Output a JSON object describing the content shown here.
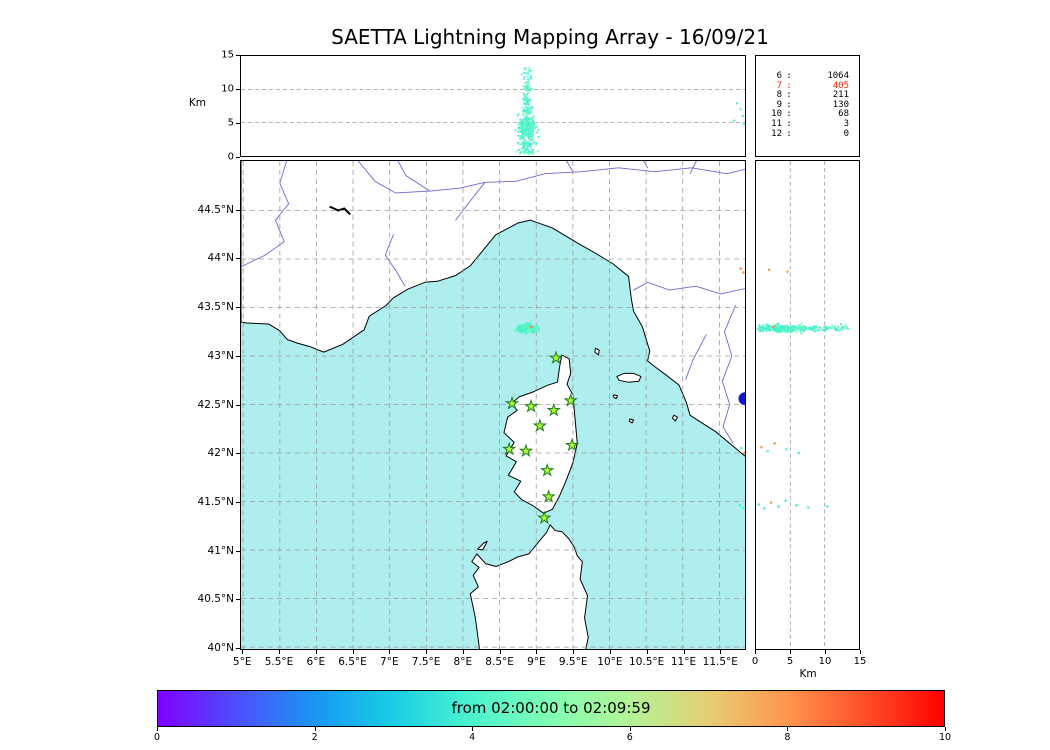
{
  "title": "SAETTA Lightning Mapping Array - 16/09/21",
  "labels": {
    "km": "Km"
  },
  "colors": {
    "sea": "#afeeee",
    "land": "#ffffff",
    "coast": "#000000",
    "river": "#6a68d4",
    "grid": "#9a9a9a",
    "lake": "#000000",
    "station_fill": "#adff2f",
    "station_edge": "#1d7a1d"
  },
  "legend": {
    "rows": [
      {
        "n": "6",
        "count": "1064",
        "color": "#000000"
      },
      {
        "n": "7",
        "count": "405",
        "color": "#e62e04"
      },
      {
        "n": "8",
        "count": "211",
        "color": "#000000"
      },
      {
        "n": "9",
        "count": "130",
        "color": "#000000"
      },
      {
        "n": "10",
        "count": "68",
        "color": "#000000"
      },
      {
        "n": "11",
        "count": "3",
        "color": "#000000"
      },
      {
        "n": "12",
        "count": "0",
        "color": "#000000"
      }
    ]
  },
  "map": {
    "lon_ticks": [
      {
        "v": 5,
        "label": "5°E"
      },
      {
        "v": 5.5,
        "label": "5.5°E"
      },
      {
        "v": 6,
        "label": "6°E"
      },
      {
        "v": 6.5,
        "label": "6.5°E"
      },
      {
        "v": 7,
        "label": "7°E"
      },
      {
        "v": 7.5,
        "label": "7.5°E"
      },
      {
        "v": 8,
        "label": "8°E"
      },
      {
        "v": 8.5,
        "label": "8.5°E"
      },
      {
        "v": 9,
        "label": "9°E"
      },
      {
        "v": 9.5,
        "label": "9.5°E"
      },
      {
        "v": 10,
        "label": "10°E"
      },
      {
        "v": 10.5,
        "label": "10.5°E"
      },
      {
        "v": 11,
        "label": "11°E"
      },
      {
        "v": 11.5,
        "label": "11.5°E"
      }
    ],
    "lat_ticks": [
      {
        "v": 40,
        "label": "40°N"
      },
      {
        "v": 40.5,
        "label": "40.5°N"
      },
      {
        "v": 41,
        "label": "41°N"
      },
      {
        "v": 41.5,
        "label": "41.5°N"
      },
      {
        "v": 42,
        "label": "42°N"
      },
      {
        "v": 42.5,
        "label": "42.5°N"
      },
      {
        "v": 43,
        "label": "43°N"
      },
      {
        "v": 43.5,
        "label": "43.5°N"
      },
      {
        "v": 44,
        "label": "44°N"
      },
      {
        "v": 44.5,
        "label": "44.5°N"
      }
    ]
  },
  "alt_axis": {
    "ticks": [
      {
        "v": 0,
        "label": "0"
      },
      {
        "v": 5,
        "label": "5"
      },
      {
        "v": 10,
        "label": "10"
      },
      {
        "v": 15,
        "label": "15"
      }
    ]
  },
  "colorbar": {
    "label": "from 02:00:00 to 02:09:59",
    "ticks": [
      "0",
      "2",
      "4",
      "6",
      "8",
      "10"
    ],
    "range": [
      0,
      10
    ],
    "stops": [
      "#8000ff",
      "#4d4ffc",
      "#1a96f3",
      "#1acee3",
      "#4df3ce",
      "#80ffb4",
      "#b3f396",
      "#e6ce74",
      "#ff964f",
      "#ff4f28",
      "#ff0000"
    ]
  },
  "stations": [
    [
      9.27,
      42.98
    ],
    [
      8.67,
      42.51
    ],
    [
      8.93,
      42.48
    ],
    [
      9.24,
      42.44
    ],
    [
      9.47,
      42.54
    ],
    [
      9.05,
      42.28
    ],
    [
      8.63,
      42.04
    ],
    [
      8.86,
      42.02
    ],
    [
      9.49,
      42.08
    ],
    [
      9.15,
      41.82
    ],
    [
      9.17,
      41.55
    ],
    [
      9.11,
      41.33
    ]
  ],
  "geo": {
    "land": [
      [
        [
          4.97,
          45.03
        ],
        [
          11.88,
          45.03
        ],
        [
          11.88,
          41.95
        ],
        [
          11.72,
          42.05
        ],
        [
          11.45,
          42.22
        ],
        [
          11.18,
          42.35
        ],
        [
          11.1,
          42.39
        ],
        [
          11.05,
          42.52
        ],
        [
          10.95,
          42.7
        ],
        [
          10.78,
          42.8
        ],
        [
          10.6,
          42.9
        ],
        [
          10.52,
          42.95
        ],
        [
          10.55,
          43.05
        ],
        [
          10.45,
          43.3
        ],
        [
          10.33,
          43.46
        ],
        [
          10.3,
          43.58
        ],
        [
          10.26,
          43.82
        ],
        [
          10.05,
          43.95
        ],
        [
          9.83,
          44.05
        ],
        [
          9.55,
          44.17
        ],
        [
          9.22,
          44.32
        ],
        [
          8.92,
          44.4
        ],
        [
          8.75,
          44.37
        ],
        [
          8.45,
          44.25
        ],
        [
          8.1,
          43.93
        ],
        [
          7.9,
          43.83
        ],
        [
          7.65,
          43.77
        ],
        [
          7.48,
          43.76
        ],
        [
          7.25,
          43.69
        ],
        [
          7.05,
          43.6
        ],
        [
          6.95,
          43.52
        ],
        [
          6.72,
          43.41
        ],
        [
          6.65,
          43.27
        ],
        [
          6.36,
          43.12
        ],
        [
          6.1,
          43.04
        ],
        [
          5.9,
          43.1
        ],
        [
          5.75,
          43.13
        ],
        [
          5.6,
          43.17
        ],
        [
          5.5,
          43.26
        ],
        [
          5.35,
          43.33
        ],
        [
          5.05,
          43.34
        ],
        [
          4.97,
          43.35
        ]
      ],
      [
        [
          9.35,
          43.01
        ],
        [
          9.45,
          42.97
        ],
        [
          9.47,
          42.82
        ],
        [
          9.42,
          42.71
        ],
        [
          9.5,
          42.6
        ],
        [
          9.53,
          42.35
        ],
        [
          9.56,
          42.1
        ],
        [
          9.5,
          41.9
        ],
        [
          9.4,
          41.7
        ],
        [
          9.32,
          41.56
        ],
        [
          9.22,
          41.42
        ],
        [
          9.1,
          41.38
        ],
        [
          8.95,
          41.46
        ],
        [
          8.8,
          41.52
        ],
        [
          8.7,
          41.6
        ],
        [
          8.79,
          41.71
        ],
        [
          8.62,
          41.77
        ],
        [
          8.73,
          41.91
        ],
        [
          8.59,
          41.97
        ],
        [
          8.7,
          42.11
        ],
        [
          8.56,
          42.21
        ],
        [
          8.61,
          42.37
        ],
        [
          8.74,
          42.44
        ],
        [
          8.66,
          42.51
        ],
        [
          8.77,
          42.58
        ],
        [
          8.96,
          42.63
        ],
        [
          9.16,
          42.7
        ],
        [
          9.29,
          42.73
        ],
        [
          9.32,
          42.89
        ]
      ],
      [
        [
          8.23,
          39.95
        ],
        [
          8.17,
          40.3
        ],
        [
          8.1,
          40.55
        ],
        [
          8.21,
          40.62
        ],
        [
          8.14,
          40.74
        ],
        [
          8.22,
          40.82
        ],
        [
          8.12,
          40.88
        ],
        [
          8.19,
          40.96
        ],
        [
          8.31,
          40.86
        ],
        [
          8.45,
          40.83
        ],
        [
          8.62,
          40.88
        ],
        [
          8.75,
          40.93
        ],
        [
          8.9,
          40.96
        ],
        [
          9.05,
          41.1
        ],
        [
          9.14,
          41.18
        ],
        [
          9.19,
          41.26
        ],
        [
          9.26,
          41.2
        ],
        [
          9.35,
          41.19
        ],
        [
          9.44,
          41.12
        ],
        [
          9.52,
          41.03
        ],
        [
          9.56,
          40.94
        ],
        [
          9.63,
          40.88
        ],
        [
          9.6,
          40.7
        ],
        [
          9.7,
          40.53
        ],
        [
          9.66,
          40.3
        ],
        [
          9.71,
          40.1
        ],
        [
          9.67,
          39.95
        ]
      ],
      [
        [
          10.1,
          42.79
        ],
        [
          10.2,
          42.82
        ],
        [
          10.33,
          42.82
        ],
        [
          10.43,
          42.79
        ],
        [
          10.4,
          42.74
        ],
        [
          10.26,
          42.73
        ],
        [
          10.13,
          42.75
        ]
      ],
      [
        [
          9.81,
          43.08
        ],
        [
          9.86,
          43.06
        ],
        [
          9.85,
          43.01
        ],
        [
          9.8,
          43.04
        ]
      ],
      [
        [
          8.2,
          41.01
        ],
        [
          8.28,
          41.07
        ],
        [
          8.33,
          41.09
        ],
        [
          8.27,
          41.0
        ]
      ],
      [
        [
          10.28,
          42.35
        ],
        [
          10.33,
          42.34
        ],
        [
          10.31,
          42.31
        ],
        [
          10.27,
          42.33
        ]
      ],
      [
        [
          10.06,
          42.6
        ],
        [
          10.11,
          42.59
        ],
        [
          10.09,
          42.56
        ],
        [
          10.05,
          42.58
        ]
      ],
      [
        [
          10.88,
          42.39
        ],
        [
          10.93,
          42.37
        ],
        [
          10.9,
          42.33
        ],
        [
          10.86,
          42.36
        ]
      ]
    ],
    "rivers": [
      [
        [
          7.55,
          44.7
        ],
        [
          7.95,
          44.73
        ],
        [
          8.3,
          44.79
        ],
        [
          8.72,
          44.8
        ],
        [
          9.12,
          44.88
        ],
        [
          9.62,
          44.9
        ],
        [
          10.12,
          44.94
        ],
        [
          10.62,
          44.9
        ],
        [
          11.12,
          44.94
        ],
        [
          11.6,
          44.88
        ],
        [
          11.88,
          44.93
        ]
      ],
      [
        [
          7.9,
          44.4
        ],
        [
          8.05,
          44.55
        ],
        [
          8.3,
          44.79
        ]
      ],
      [
        [
          7.1,
          45.03
        ],
        [
          7.22,
          44.86
        ],
        [
          7.55,
          44.7
        ]
      ],
      [
        [
          6.55,
          45.03
        ],
        [
          6.8,
          44.8
        ],
        [
          7.08,
          44.68
        ],
        [
          7.55,
          44.7
        ]
      ],
      [
        [
          5.6,
          45.03
        ],
        [
          5.5,
          44.78
        ],
        [
          5.62,
          44.57
        ],
        [
          5.44,
          44.4
        ],
        [
          5.56,
          44.18
        ],
        [
          5.3,
          44.04
        ],
        [
          5.08,
          43.96
        ],
        [
          4.97,
          43.92
        ]
      ],
      [
        [
          7.05,
          44.25
        ],
        [
          6.94,
          44.04
        ],
        [
          7.1,
          43.86
        ],
        [
          7.21,
          43.72
        ]
      ],
      [
        [
          11.88,
          43.7
        ],
        [
          11.52,
          43.64
        ],
        [
          11.18,
          43.72
        ],
        [
          10.82,
          43.68
        ],
        [
          10.52,
          43.76
        ],
        [
          10.33,
          43.68
        ]
      ],
      [
        [
          11.72,
          43.52
        ],
        [
          11.57,
          43.25
        ],
        [
          11.67,
          43.0
        ],
        [
          11.54,
          42.74
        ],
        [
          11.64,
          42.5
        ],
        [
          11.55,
          42.27
        ],
        [
          11.69,
          42.1
        ]
      ],
      [
        [
          11.32,
          43.22
        ],
        [
          11.14,
          42.96
        ],
        [
          11.04,
          42.76
        ]
      ],
      [
        [
          9.4,
          45.03
        ],
        [
          9.5,
          44.9
        ]
      ],
      [
        [
          10.45,
          45.03
        ],
        [
          10.52,
          44.94
        ]
      ],
      [
        [
          11.2,
          45.03
        ],
        [
          11.1,
          44.88
        ]
      ]
    ],
    "lake": [
      [
        6.18,
        44.54
      ],
      [
        6.3,
        44.5
      ],
      [
        6.38,
        44.52
      ],
      [
        6.46,
        44.46
      ]
    ]
  },
  "chart_data": {
    "type": "scatter",
    "title": "SAETTA Lightning Mapping Array - 16/09/21",
    "panels": [
      {
        "name": "altitude-vs-longitude",
        "ylabel": "Km",
        "xlim": [
          4.97,
          11.85
        ],
        "ylim": [
          0,
          15
        ],
        "yticks": [
          0,
          5,
          10,
          15
        ],
        "grid": true
      },
      {
        "name": "map-longitude-latitude",
        "xlim": [
          4.97,
          11.85
        ],
        "ylim": [
          39.98,
          45.01
        ],
        "tick_step_deg": 0.5,
        "grid": true
      },
      {
        "name": "altitude-vs-latitude",
        "xlabel": "Km",
        "xlim": [
          0,
          15
        ],
        "ylim": [
          39.98,
          45.01
        ],
        "xticks": [
          0,
          5,
          10,
          15
        ],
        "grid": true
      }
    ],
    "flash": {
      "lon_center": 8.87,
      "lon_sigma": 0.06,
      "lat_center": 43.285,
      "lat_sigma": 0.016,
      "alt_dense_mean_km": 4.3,
      "alt_dense_sigma_km": 1.1,
      "alt_min_km": 0.3,
      "alt_top_km": 13.2,
      "n_points": 430,
      "time_frac_range": [
        0.36,
        0.47
      ]
    },
    "sparse_points": {
      "top_lon_alt_f": [
        [
          11.7,
          5.3,
          0.38
        ],
        [
          11.74,
          7.9,
          0.4
        ],
        [
          11.79,
          7.0,
          0.42
        ],
        [
          11.82,
          6.0,
          0.37
        ],
        [
          11.84,
          4.8,
          0.44
        ]
      ],
      "right_alt_lat_f": [
        [
          1.9,
          43.89,
          0.8
        ],
        [
          4.6,
          43.87,
          0.78
        ],
        [
          2.5,
          43.3,
          0.82
        ],
        [
          0.8,
          42.06,
          0.79
        ],
        [
          1.7,
          42.02,
          0.42
        ],
        [
          2.7,
          42.1,
          0.8
        ],
        [
          4.4,
          42.04,
          0.44
        ],
        [
          6.2,
          42.0,
          0.4
        ],
        [
          0.4,
          41.47,
          0.38
        ],
        [
          1.2,
          41.43,
          0.4
        ],
        [
          2.2,
          41.49,
          0.8
        ],
        [
          3.3,
          41.45,
          0.38
        ],
        [
          4.3,
          41.51,
          0.42
        ],
        [
          5.9,
          41.46,
          0.36
        ],
        [
          7.6,
          41.44,
          0.4
        ],
        [
          10.4,
          41.45,
          0.41
        ],
        [
          12.6,
          43.3,
          0.44
        ],
        [
          13.4,
          43.28,
          0.46
        ]
      ],
      "map_lon_lat_f": [
        [
          8.93,
          43.3,
          0.82
        ],
        [
          11.79,
          43.9,
          0.8
        ],
        [
          11.83,
          43.86,
          0.78
        ],
        [
          11.8,
          42.05,
          0.42
        ],
        [
          11.84,
          42.0,
          0.8
        ],
        [
          11.78,
          41.46,
          0.4
        ],
        [
          11.83,
          41.43,
          0.4
        ]
      ]
    },
    "blue_marker": {
      "lon": 11.85,
      "lat": 42.56,
      "color": "#1414cf",
      "radius_px": 6.5
    },
    "station_counts": [
      [
        6,
        1064
      ],
      [
        7,
        405
      ],
      [
        8,
        211
      ],
      [
        9,
        130
      ],
      [
        10,
        68
      ],
      [
        11,
        3
      ],
      [
        12,
        0
      ]
    ],
    "time_window": {
      "start": "02:00:00",
      "end": "02:09:59"
    }
  }
}
